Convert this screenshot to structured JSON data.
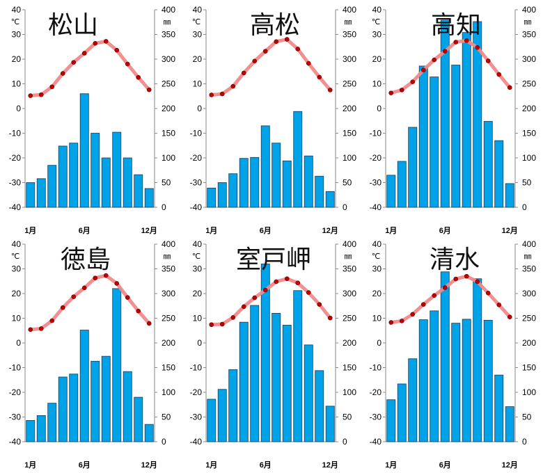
{
  "chart_data": [
    {
      "type": "bar+line",
      "title": "松山",
      "left_unit": "℃",
      "right_unit": "㎜",
      "left_ticks": [
        "40",
        "30",
        "20",
        "10",
        "0",
        "-10",
        "-20",
        "-30",
        "-40"
      ],
      "right_ticks": [
        "400",
        "350",
        "300",
        "250",
        "200",
        "150",
        "100",
        "50",
        "0"
      ],
      "x_labels": [
        "1月",
        "6月",
        "12月"
      ],
      "categories": [
        1,
        2,
        3,
        4,
        5,
        6,
        7,
        8,
        9,
        10,
        11,
        12
      ],
      "temp_ylim": [
        -40,
        40
      ],
      "precip_ylim": [
        0,
        400
      ],
      "temperature": [
        5.2,
        5.6,
        8.8,
        14.2,
        18.7,
        22.4,
        26.4,
        27.2,
        23.6,
        18.0,
        12.6,
        7.6
      ],
      "precipitation": [
        50,
        58,
        85,
        124,
        130,
        230,
        150,
        100,
        152,
        100,
        66,
        38
      ]
    },
    {
      "type": "bar+line",
      "title": "高松",
      "left_unit": "℃",
      "right_unit": "㎜",
      "left_ticks": [
        "40",
        "30",
        "20",
        "10",
        "0",
        "-10",
        "-20",
        "-30",
        "-40"
      ],
      "right_ticks": [
        "400",
        "350",
        "300",
        "250",
        "200",
        "150",
        "100",
        "50",
        "0"
      ],
      "x_labels": [
        "1月",
        "6月",
        "12月"
      ],
      "categories": [
        1,
        2,
        3,
        4,
        5,
        6,
        7,
        8,
        9,
        10,
        11,
        12
      ],
      "temp_ylim": [
        -40,
        40
      ],
      "precip_ylim": [
        0,
        400
      ],
      "temperature": [
        5.5,
        5.9,
        9.0,
        14.4,
        19.2,
        23.2,
        27.1,
        28.0,
        24.1,
        18.3,
        12.7,
        7.5
      ],
      "precipitation": [
        39,
        50,
        68,
        99,
        101,
        165,
        130,
        94,
        194,
        104,
        63,
        32
      ]
    },
    {
      "type": "bar+line",
      "title": "高知",
      "left_unit": "℃",
      "right_unit": "㎜",
      "left_ticks": [
        "40",
        "30",
        "20",
        "10",
        "0",
        "-10",
        "-20",
        "-30",
        "-40"
      ],
      "right_ticks": [
        "400",
        "350",
        "300",
        "250",
        "200",
        "150",
        "100",
        "50",
        "0"
      ],
      "x_labels": [
        "1月",
        "6月",
        "12月"
      ],
      "categories": [
        1,
        2,
        3,
        4,
        5,
        6,
        7,
        8,
        9,
        10,
        11,
        12
      ],
      "temp_ylim": [
        -40,
        40
      ],
      "precip_ylim": [
        0,
        400
      ],
      "temperature": [
        6.3,
        7.5,
        10.8,
        15.6,
        19.7,
        23.2,
        26.9,
        27.5,
        24.7,
        19.3,
        13.8,
        8.5
      ],
      "precipitation": [
        65,
        93,
        162,
        286,
        264,
        379,
        288,
        354,
        376,
        174,
        135,
        48
      ]
    },
    {
      "type": "bar+line",
      "title": "徳島",
      "left_unit": "℃",
      "right_unit": "㎜",
      "left_ticks": [
        "40",
        "30",
        "20",
        "10",
        "0",
        "-10",
        "-20",
        "-30",
        "-40"
      ],
      "right_ticks": [
        "400",
        "350",
        "300",
        "250",
        "200",
        "150",
        "100",
        "50",
        "0"
      ],
      "x_labels": [
        "1月",
        "6月",
        "12月"
      ],
      "categories": [
        1,
        2,
        3,
        4,
        5,
        6,
        7,
        8,
        9,
        10,
        11,
        12
      ],
      "temp_ylim": [
        -40,
        40
      ],
      "precip_ylim": [
        0,
        400
      ],
      "temperature": [
        5.4,
        5.8,
        9.0,
        14.3,
        18.7,
        22.3,
        26.3,
        27.3,
        24.1,
        18.4,
        12.9,
        7.9
      ],
      "precipitation": [
        43,
        53,
        78,
        131,
        137,
        226,
        163,
        173,
        310,
        142,
        90,
        35
      ]
    },
    {
      "type": "bar+line",
      "title": "室戸岬",
      "left_unit": "℃",
      "right_unit": "㎜",
      "left_ticks": [
        "40",
        "30",
        "20",
        "10",
        "0",
        "-10",
        "-20",
        "-30",
        "-40"
      ],
      "right_ticks": [
        "400",
        "350",
        "300",
        "250",
        "200",
        "150",
        "100",
        "50",
        "0"
      ],
      "x_labels": [
        "1月",
        "6月",
        "12月"
      ],
      "categories": [
        1,
        2,
        3,
        4,
        5,
        6,
        7,
        8,
        9,
        10,
        11,
        12
      ],
      "temp_ylim": [
        -40,
        40
      ],
      "precip_ylim": [
        0,
        400
      ],
      "temperature": [
        7.4,
        7.6,
        10.3,
        14.7,
        18.3,
        21.4,
        24.8,
        26.0,
        24.3,
        20.4,
        15.6,
        10.1
      ],
      "precipitation": [
        86,
        106,
        146,
        242,
        276,
        360,
        260,
        236,
        306,
        196,
        144,
        72
      ]
    },
    {
      "type": "bar+line",
      "title": "清水",
      "left_unit": "℃",
      "right_unit": "㎜",
      "left_ticks": [
        "40",
        "30",
        "20",
        "10",
        "0",
        "-10",
        "-20",
        "-30",
        "-40"
      ],
      "right_ticks": [
        "400",
        "350",
        "300",
        "250",
        "200",
        "150",
        "100",
        "50",
        "0"
      ],
      "x_labels": [
        "1月",
        "6月",
        "12月"
      ],
      "categories": [
        1,
        2,
        3,
        4,
        5,
        6,
        7,
        8,
        9,
        10,
        11,
        12
      ],
      "temp_ylim": [
        -40,
        40
      ],
      "precip_ylim": [
        0,
        400
      ],
      "temperature": [
        8.3,
        8.9,
        11.6,
        15.6,
        19.2,
        22.4,
        25.9,
        27.0,
        24.8,
        20.2,
        15.4,
        10.5
      ],
      "precipitation": [
        85,
        117,
        168,
        247,
        265,
        344,
        240,
        248,
        330,
        246,
        135,
        71
      ]
    }
  ]
}
